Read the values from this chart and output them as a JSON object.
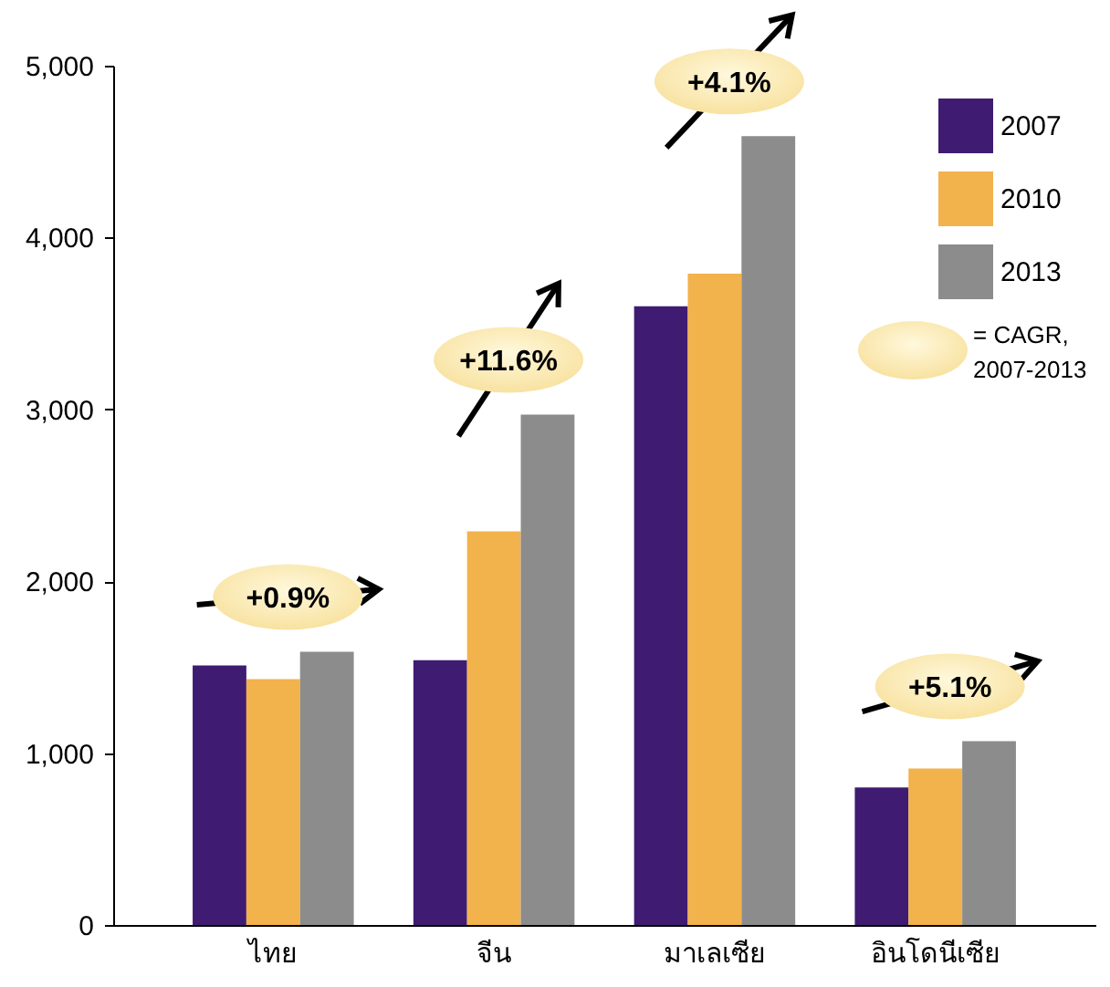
{
  "chart_data": {
    "type": "bar",
    "categories": [
      "ไทย",
      "จีน",
      "มาเลเซีย",
      "อินโดนีเซีย"
    ],
    "series": [
      {
        "name": "2007",
        "color": "#3f1c72",
        "values": [
          1510,
          1540,
          3600,
          800
        ]
      },
      {
        "name": "2010",
        "color": "#f2b24c",
        "values": [
          1430,
          2290,
          3790,
          910
        ]
      },
      {
        "name": "2013",
        "color": "#8c8c8c",
        "values": [
          1590,
          2970,
          4590,
          1070
        ]
      }
    ],
    "ylim": [
      0,
      5000
    ],
    "yticks": [
      0,
      {
        "value": 1000,
        "label": "1,000"
      },
      {
        "value": 2000,
        "label": "2,000"
      },
      {
        "value": 3000,
        "label": "3,000"
      },
      {
        "value": 4000,
        "label": "4,000"
      },
      {
        "value": 5000,
        "label": "5,000"
      }
    ],
    "legend": "top right",
    "annotations": [
      "+0.9%",
      "+11.6%",
      "+4.1%",
      "+5.1%",
      "= CAGR, 2007-2013"
    ]
  }
}
